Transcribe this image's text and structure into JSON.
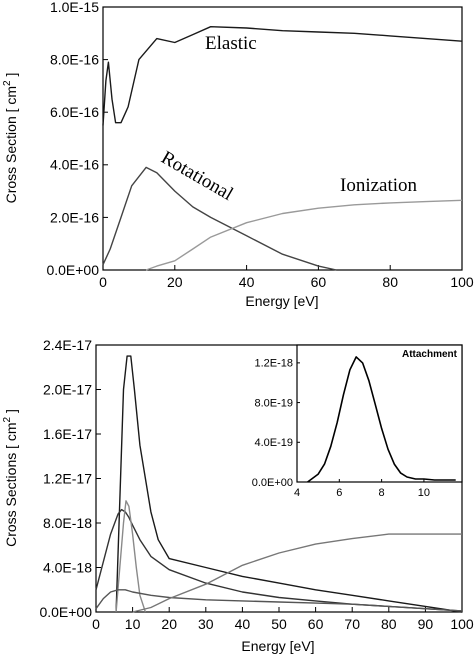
{
  "chart_data": [
    {
      "type": "line",
      "xlabel": "Energy [eV]",
      "ylabel": "Cross Section [ cm",
      "ylabel_sup": "2",
      "ylabel_end": " ]",
      "xlim": [
        0,
        100
      ],
      "ylim": [
        0,
        1e-15
      ],
      "x_ticks": [
        0,
        20,
        40,
        60,
        80,
        100
      ],
      "x_tick_labels": [
        "0",
        "20",
        "40",
        "60",
        "80",
        "100"
      ],
      "y_ticks": [
        0,
        2e-16,
        4e-16,
        6e-16,
        8e-16,
        1e-15
      ],
      "y_tick_labels": [
        "0.0E+00",
        "2.0E-16",
        "4.0E-16",
        "6.0E-16",
        "8.0E-16",
        "1.0E-15"
      ],
      "series": [
        {
          "name": "Elastic",
          "color": "#1a1a1a",
          "x": [
            0,
            0.8,
            1.5,
            2.5,
            3.5,
            5,
            7,
            10,
            15,
            20,
            25,
            30,
            40,
            50,
            60,
            70,
            80,
            90,
            100
          ],
          "y": [
            5.5e-16,
            7.2e-16,
            7.9e-16,
            6.5e-16,
            5.6e-16,
            5.6e-16,
            6.2e-16,
            8e-16,
            8.8e-16,
            8.65e-16,
            8.95e-16,
            9.25e-16,
            9.2e-16,
            9.1e-16,
            9.05e-16,
            9e-16,
            8.9e-16,
            8.8e-16,
            8.7e-16
          ]
        },
        {
          "name": "Rotational",
          "color": "#444444",
          "x": [
            0,
            2,
            5,
            8,
            12,
            15,
            20,
            25,
            30,
            40,
            50,
            60,
            65
          ],
          "y": [
            2e-17,
            8e-17,
            2e-16,
            3.2e-16,
            3.9e-16,
            3.7e-16,
            3e-16,
            2.4e-16,
            2e-16,
            1.3e-16,
            6e-17,
            1.5e-17,
            0
          ]
        },
        {
          "name": "Ionization",
          "color": "#9a9a9a",
          "x": [
            12,
            15,
            20,
            25,
            30,
            40,
            50,
            60,
            70,
            80,
            90,
            100
          ],
          "y": [
            0,
            1.5e-17,
            3.5e-17,
            8e-17,
            1.25e-16,
            1.8e-16,
            2.15e-16,
            2.35e-16,
            2.48e-16,
            2.55e-16,
            2.6e-16,
            2.65e-16
          ]
        }
      ],
      "annotations": [
        "Elastic",
        "Rotational",
        "Ionization"
      ]
    },
    {
      "type": "line",
      "xlabel": "Energy [eV]",
      "ylabel": "Cross Sections [ cm",
      "ylabel_sup": "2",
      "ylabel_end": " ]",
      "xlim": [
        0,
        100
      ],
      "ylim": [
        0,
        2.4e-17
      ],
      "x_ticks": [
        0,
        10,
        20,
        30,
        40,
        50,
        60,
        70,
        80,
        90,
        100
      ],
      "x_tick_labels": [
        "0",
        "10",
        "20",
        "30",
        "40",
        "50",
        "60",
        "70",
        "80",
        "90",
        "100"
      ],
      "y_ticks": [
        0,
        4e-18,
        8e-18,
        1.2e-17,
        1.6e-17,
        2e-17,
        2.4e-17
      ],
      "y_tick_labels": [
        "0.0E+00",
        "4.0E-18",
        "8.0E-18",
        "1.2E-17",
        "1.6E-17",
        "2.0E-17",
        "2.4E-17"
      ],
      "series": [
        {
          "color": "#1a1a1a",
          "x": [
            5.5,
            6.5,
            7.5,
            8.5,
            9.5,
            10.5,
            12,
            15,
            17,
            20,
            30,
            40,
            50,
            60,
            70,
            80,
            90,
            100
          ],
          "y": [
            0,
            1e-17,
            2e-17,
            2.3e-17,
            2.3e-17,
            2e-17,
            1.5e-17,
            9e-18,
            6.5e-18,
            4.8e-18,
            4e-18,
            3.2e-18,
            2.6e-18,
            2e-18,
            1.5e-18,
            1e-18,
            5e-19,
            0
          ]
        },
        {
          "color": "#333333",
          "x": [
            0,
            2,
            4,
            6,
            7,
            8,
            9,
            10,
            12,
            15,
            20,
            30,
            40,
            50,
            60,
            70,
            80,
            90,
            100
          ],
          "y": [
            2e-18,
            4.5e-18,
            7e-18,
            8.8e-18,
            9.2e-18,
            9e-18,
            8.5e-18,
            7.8e-18,
            6.5e-18,
            5e-18,
            3.8e-18,
            2.6e-18,
            1.8e-18,
            1.3e-18,
            1e-18,
            7e-19,
            5e-19,
            3e-19,
            1e-19
          ]
        },
        {
          "color": "#8a8a8a",
          "x": [
            5.5,
            6.5,
            7.5,
            8.2,
            9,
            10,
            11,
            12,
            13.5
          ],
          "y": [
            0,
            4e-18,
            8e-18,
            1e-17,
            9.5e-18,
            7e-18,
            4e-18,
            1.5e-18,
            0
          ]
        },
        {
          "color": "#555555",
          "x": [
            0,
            2,
            4,
            6,
            8,
            10,
            15,
            20,
            30,
            40,
            50,
            60,
            70,
            80,
            90,
            100
          ],
          "y": [
            3e-19,
            1.2e-18,
            1.8e-18,
            2e-18,
            2e-18,
            1.8e-18,
            1.5e-18,
            1.3e-18,
            1.1e-18,
            1e-18,
            9e-19,
            8e-19,
            7e-19,
            5e-19,
            3e-19,
            1e-19
          ]
        },
        {
          "color": "#777777",
          "x": [
            10,
            15,
            20,
            30,
            40,
            50,
            60,
            70,
            80,
            90,
            100
          ],
          "y": [
            0,
            4e-19,
            1.2e-18,
            2.5e-18,
            4.2e-18,
            5.3e-18,
            6.1e-18,
            6.6e-18,
            7e-18,
            7e-18,
            7e-18
          ]
        }
      ]
    },
    {
      "type": "line",
      "title": "Attachment",
      "xlim": [
        4,
        11.8
      ],
      "ylim": [
        0,
        1.38e-18
      ],
      "x_ticks": [
        4,
        6,
        8,
        10
      ],
      "x_tick_labels": [
        "4",
        "6",
        "8",
        "10"
      ],
      "y_ticks": [
        0,
        4e-19,
        8e-19,
        1.2e-18
      ],
      "y_tick_labels": [
        "0.0E+00",
        "4.0E-19",
        "8.0E-19",
        "1.2E-18"
      ],
      "series": [
        {
          "name": "Attachment",
          "color": "#000000",
          "x": [
            4.5,
            5.0,
            5.3,
            5.6,
            5.9,
            6.2,
            6.5,
            6.8,
            7.1,
            7.4,
            7.7,
            8.0,
            8.3,
            8.6,
            8.9,
            9.2,
            9.6,
            10.0,
            10.5,
            11.0,
            11.5
          ],
          "y": [
            0.0,
            8e-20,
            1.8e-19,
            3.6e-19,
            6e-19,
            8.8e-19,
            1.13e-18,
            1.26e-18,
            1.2e-18,
            1.02e-18,
            7.8e-19,
            5.4e-19,
            3.3e-19,
            1.8e-19,
            9e-20,
            5e-20,
            3e-20,
            3e-20,
            2e-20,
            2e-20,
            2e-20
          ]
        }
      ]
    }
  ]
}
